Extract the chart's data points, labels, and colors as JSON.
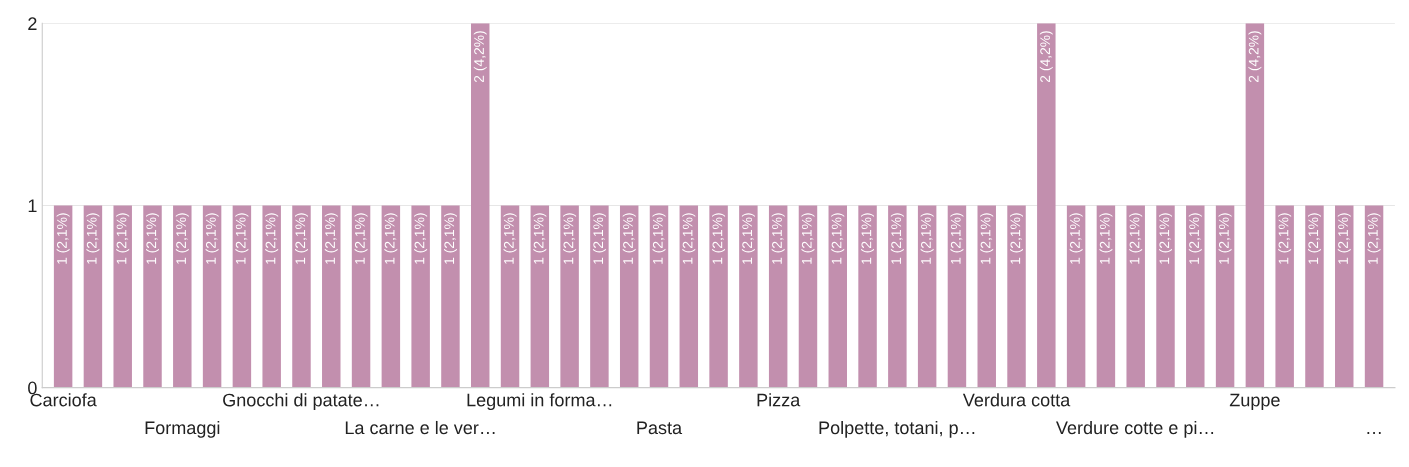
{
  "chart_data": {
    "type": "bar",
    "categories": [
      "Carciofa",
      null,
      null,
      null,
      "Formaggi",
      null,
      null,
      null,
      "Gnocchi di patate…",
      null,
      null,
      null,
      "La carne e le ver…",
      null,
      null,
      null,
      "Legumi in forma…",
      null,
      null,
      null,
      "Pasta",
      null,
      null,
      null,
      "Pizza",
      null,
      null,
      null,
      "Polpette, totani, p…",
      null,
      null,
      null,
      "Verdura cotta",
      null,
      null,
      null,
      "Verdure cotte e pi…",
      null,
      null,
      null,
      "Zuppe",
      null,
      null,
      null,
      "…"
    ],
    "values": [
      1,
      1,
      1,
      1,
      1,
      1,
      1,
      1,
      1,
      1,
      1,
      1,
      1,
      1,
      2,
      1,
      1,
      1,
      1,
      1,
      1,
      1,
      1,
      1,
      1,
      1,
      1,
      1,
      1,
      1,
      1,
      1,
      1,
      2,
      1,
      1,
      1,
      1,
      1,
      1,
      2,
      1,
      1,
      1,
      1
    ],
    "value_labels": [
      "1 (2,1%)",
      "1 (2,1%)",
      "1 (2,1%)",
      "1 (2,1%)",
      "1 (2,1%)",
      "1 (2,1%)",
      "1 (2,1%)",
      "1 (2,1%)",
      "1 (2,1%)",
      "1 (2,1%)",
      "1 (2,1%)",
      "1 (2,1%)",
      "1 (2,1%)",
      "1 (2,1%)",
      "2 (4,2%)",
      "1 (2,1%)",
      "1 (2,1%)",
      "1 (2,1%)",
      "1 (2,1%)",
      "1 (2,1%)",
      "1 (2,1%)",
      "1 (2,1%)",
      "1 (2,1%)",
      "1 (2,1%)",
      "1 (2,1%)",
      "1 (2,1%)",
      "1 (2,1%)",
      "1 (2,1%)",
      "1 (2,1%)",
      "1 (2,1%)",
      "1 (2,1%)",
      "1 (2,1%)",
      "1 (2,1%)",
      "2 (4,2%)",
      "1 (2,1%)",
      "1 (2,1%)",
      "1 (2,1%)",
      "1 (2,1%)",
      "1 (2,1%)",
      "1 (2,1%)",
      "2 (4,2%)",
      "1 (2,1%)",
      "1 (2,1%)",
      "1 (2,1%)",
      "1 (2,1%)"
    ],
    "color": "#c28fae",
    "ylim": [
      0,
      2
    ],
    "yticks": [
      0,
      1,
      2
    ],
    "grid": "y"
  }
}
